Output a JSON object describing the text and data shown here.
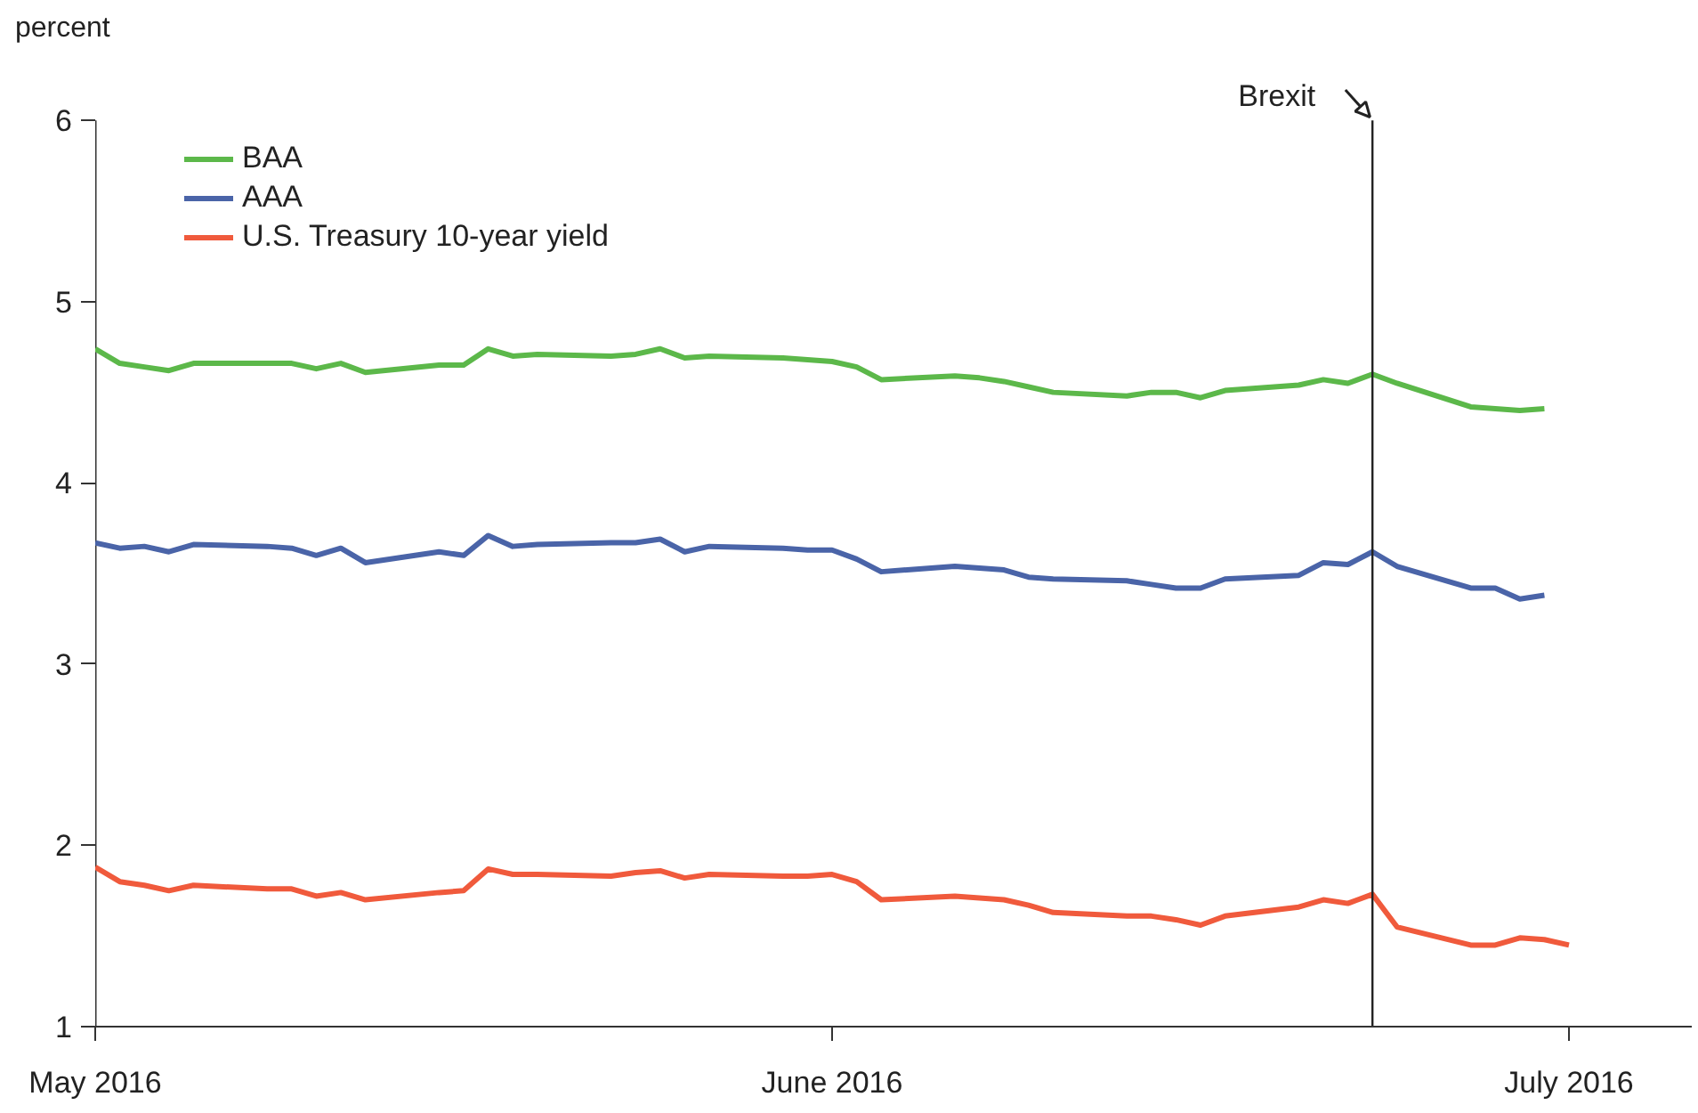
{
  "chart_data": {
    "type": "line",
    "ylabel": "percent",
    "xlim": [
      "2016-05-02",
      "2016-07-06"
    ],
    "xticks": [
      {
        "value": "2016-05-02",
        "label": "May 2016"
      },
      {
        "value": "2016-06-01",
        "label": "June 2016"
      },
      {
        "value": "2016-07-01",
        "label": "July 2016"
      }
    ],
    "ylim": [
      1,
      6
    ],
    "yticks": [
      1,
      2,
      3,
      4,
      5,
      6
    ],
    "grid": false,
    "legend": "top left",
    "line_style": "solid",
    "marker": "none",
    "x": [
      "2016-05-02",
      "2016-05-03",
      "2016-05-04",
      "2016-05-05",
      "2016-05-06",
      "2016-05-09",
      "2016-05-10",
      "2016-05-11",
      "2016-05-12",
      "2016-05-13",
      "2016-05-16",
      "2016-05-17",
      "2016-05-18",
      "2016-05-19",
      "2016-05-20",
      "2016-05-23",
      "2016-05-24",
      "2016-05-25",
      "2016-05-26",
      "2016-05-27",
      "2016-05-30",
      "2016-05-31",
      "2016-06-01",
      "2016-06-02",
      "2016-06-03",
      "2016-06-06",
      "2016-06-07",
      "2016-06-08",
      "2016-06-09",
      "2016-06-10",
      "2016-06-13",
      "2016-06-14",
      "2016-06-15",
      "2016-06-16",
      "2016-06-17",
      "2016-06-20",
      "2016-06-21",
      "2016-06-22",
      "2016-06-23",
      "2016-06-24",
      "2016-06-27",
      "2016-06-28",
      "2016-06-29",
      "2016-06-30",
      "2016-07-01"
    ],
    "series": [
      {
        "name": "BAA",
        "color": "#5cb84a",
        "values": [
          4.74,
          4.66,
          4.64,
          4.62,
          4.66,
          4.66,
          4.66,
          4.63,
          4.66,
          4.61,
          4.65,
          4.65,
          4.74,
          4.7,
          4.71,
          4.7,
          4.71,
          4.74,
          4.69,
          4.7,
          4.69,
          4.68,
          4.67,
          4.64,
          4.57,
          4.59,
          4.58,
          4.56,
          4.53,
          4.5,
          4.48,
          4.5,
          4.5,
          4.47,
          4.51,
          4.54,
          4.57,
          4.55,
          4.6,
          4.55,
          4.42,
          4.41,
          4.4,
          4.41,
          null
        ]
      },
      {
        "name": "AAA",
        "color": "#4a64a8",
        "values": [
          3.67,
          3.64,
          3.65,
          3.62,
          3.66,
          3.65,
          3.64,
          3.6,
          3.64,
          3.56,
          3.62,
          3.6,
          3.71,
          3.65,
          3.66,
          3.67,
          3.67,
          3.69,
          3.62,
          3.65,
          3.64,
          3.63,
          3.63,
          3.58,
          3.51,
          3.54,
          3.53,
          3.52,
          3.48,
          3.47,
          3.46,
          3.44,
          3.42,
          3.42,
          3.47,
          3.49,
          3.56,
          3.55,
          3.62,
          3.54,
          3.42,
          3.42,
          3.36,
          3.38,
          null
        ]
      },
      {
        "name": "U.S. Treasury 10-year yield",
        "color": "#f05a3c",
        "values": [
          1.88,
          1.8,
          1.78,
          1.75,
          1.78,
          1.76,
          1.76,
          1.72,
          1.74,
          1.7,
          1.74,
          1.75,
          1.87,
          1.84,
          1.84,
          1.83,
          1.85,
          1.86,
          1.82,
          1.84,
          1.83,
          1.83,
          1.84,
          1.8,
          1.7,
          1.72,
          1.71,
          1.7,
          1.67,
          1.63,
          1.61,
          1.61,
          1.59,
          1.56,
          1.61,
          1.66,
          1.7,
          1.68,
          1.73,
          1.55,
          1.45,
          1.45,
          1.49,
          1.48,
          1.45
        ]
      }
    ],
    "ref_lines": [
      {
        "axis": "x",
        "value": "2016-06-23",
        "label": "Brexit",
        "color": "#222222",
        "line_style": "solid"
      }
    ]
  }
}
